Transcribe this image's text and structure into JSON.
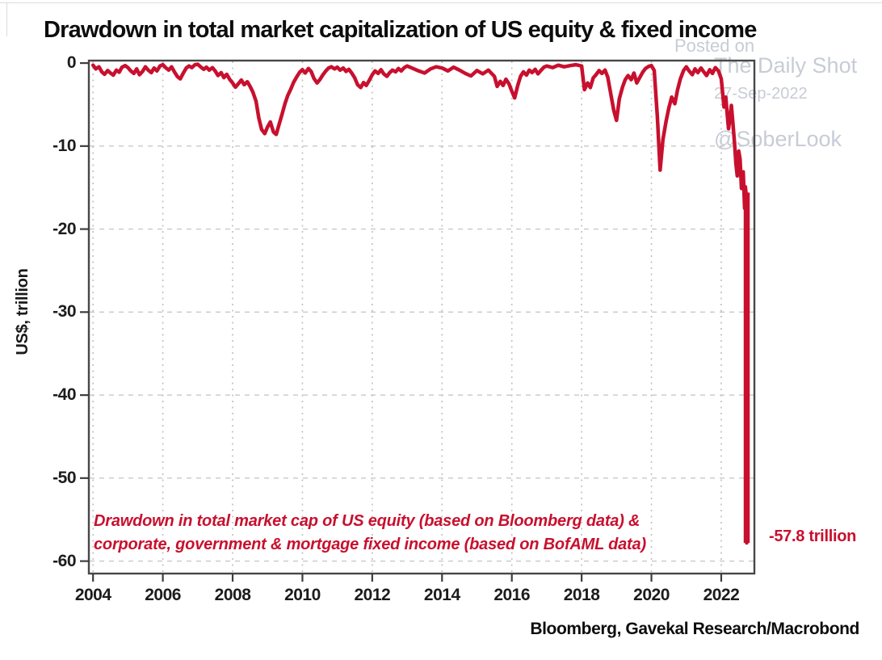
{
  "watermark": {
    "line1": "Posted on",
    "line2": "The Daily Shot",
    "line3": "27-Sep-2022",
    "handle": "@SoberLook"
  },
  "source_note": "Bloomberg, Gavekal Research/Macrobond",
  "chart_data": {
    "type": "line",
    "title": "Drawdown in total market capitalization of US equity & fixed income",
    "xlabel": "",
    "ylabel": "US$, trillion",
    "xlim": [
      2003.88,
      2022.95
    ],
    "ylim": [
      -61.5,
      0.3
    ],
    "x_ticks": [
      2004,
      2006,
      2008,
      2010,
      2012,
      2014,
      2016,
      2018,
      2020,
      2022
    ],
    "y_ticks": [
      0,
      -10,
      -20,
      -30,
      -40,
      -50,
      -60
    ],
    "grid": true,
    "legend": "none",
    "line_color": "#c8102e",
    "annotations": {
      "note_line1": "Drawdown in total market cap of US equity (based on Bloomberg data) &",
      "note_line2": "corporate, government & mortgage fixed income (based on BofAML data)",
      "last_value_label": "-57.8 trillion",
      "key_points": {
        "gfc_trough_2009": -8.6,
        "dip_2011": -2.95,
        "dip_2016": -4.2,
        "dip_dec_2018": -6.9,
        "covid_trough_2020": -12.9,
        "sep_2022_before_spike": -17.5,
        "final_value_sep_2022": -57.8
      }
    },
    "series": [
      {
        "name": "Drawdown in total market cap of US equity & fixed income (US$ trillion)",
        "points": [
          [
            2004.0,
            -0.25
          ],
          [
            2004.08,
            -0.7
          ],
          [
            2004.17,
            -0.45
          ],
          [
            2004.25,
            -1.05
          ],
          [
            2004.33,
            -1.35
          ],
          [
            2004.42,
            -0.9
          ],
          [
            2004.5,
            -1.2
          ],
          [
            2004.58,
            -1.45
          ],
          [
            2004.67,
            -0.85
          ],
          [
            2004.75,
            -1.1
          ],
          [
            2004.83,
            -0.5
          ],
          [
            2004.92,
            -0.3
          ],
          [
            2005.0,
            -0.55
          ],
          [
            2005.08,
            -0.95
          ],
          [
            2005.17,
            -1.25
          ],
          [
            2005.25,
            -0.7
          ],
          [
            2005.33,
            -1.4
          ],
          [
            2005.42,
            -1.0
          ],
          [
            2005.5,
            -0.45
          ],
          [
            2005.58,
            -0.85
          ],
          [
            2005.67,
            -1.15
          ],
          [
            2005.75,
            -0.6
          ],
          [
            2005.83,
            -0.95
          ],
          [
            2005.92,
            -0.35
          ],
          [
            2006.0,
            -0.2
          ],
          [
            2006.08,
            -0.55
          ],
          [
            2006.17,
            -0.85
          ],
          [
            2006.25,
            -0.45
          ],
          [
            2006.33,
            -1.05
          ],
          [
            2006.42,
            -1.65
          ],
          [
            2006.5,
            -1.9
          ],
          [
            2006.58,
            -1.25
          ],
          [
            2006.67,
            -0.6
          ],
          [
            2006.75,
            -0.35
          ],
          [
            2006.83,
            -0.55
          ],
          [
            2006.92,
            -0.2
          ],
          [
            2007.0,
            -0.15
          ],
          [
            2007.08,
            -0.45
          ],
          [
            2007.17,
            -0.75
          ],
          [
            2007.25,
            -0.5
          ],
          [
            2007.33,
            -0.85
          ],
          [
            2007.42,
            -0.55
          ],
          [
            2007.5,
            -0.95
          ],
          [
            2007.58,
            -1.5
          ],
          [
            2007.67,
            -1.15
          ],
          [
            2007.75,
            -1.75
          ],
          [
            2007.83,
            -1.35
          ],
          [
            2007.92,
            -2.0
          ],
          [
            2008.0,
            -2.4
          ],
          [
            2008.08,
            -2.9
          ],
          [
            2008.17,
            -2.45
          ],
          [
            2008.25,
            -2.05
          ],
          [
            2008.33,
            -2.6
          ],
          [
            2008.42,
            -2.25
          ],
          [
            2008.5,
            -2.8
          ],
          [
            2008.58,
            -3.5
          ],
          [
            2008.67,
            -4.6
          ],
          [
            2008.75,
            -6.6
          ],
          [
            2008.83,
            -8.0
          ],
          [
            2008.92,
            -8.5
          ],
          [
            2009.0,
            -7.7
          ],
          [
            2009.08,
            -7.1
          ],
          [
            2009.17,
            -8.3
          ],
          [
            2009.25,
            -8.6
          ],
          [
            2009.33,
            -7.4
          ],
          [
            2009.42,
            -6.1
          ],
          [
            2009.5,
            -4.9
          ],
          [
            2009.58,
            -3.9
          ],
          [
            2009.67,
            -3.1
          ],
          [
            2009.75,
            -2.3
          ],
          [
            2009.83,
            -1.7
          ],
          [
            2009.92,
            -1.1
          ],
          [
            2010.0,
            -0.8
          ],
          [
            2010.08,
            -1.2
          ],
          [
            2010.17,
            -0.65
          ],
          [
            2010.25,
            -1.0
          ],
          [
            2010.33,
            -1.85
          ],
          [
            2010.42,
            -2.4
          ],
          [
            2010.5,
            -2.0
          ],
          [
            2010.58,
            -1.45
          ],
          [
            2010.67,
            -0.95
          ],
          [
            2010.75,
            -0.6
          ],
          [
            2010.83,
            -0.45
          ],
          [
            2010.92,
            -0.7
          ],
          [
            2011.0,
            -0.5
          ],
          [
            2011.08,
            -0.85
          ],
          [
            2011.17,
            -0.6
          ],
          [
            2011.25,
            -1.0
          ],
          [
            2011.33,
            -0.75
          ],
          [
            2011.42,
            -1.25
          ],
          [
            2011.5,
            -1.8
          ],
          [
            2011.58,
            -2.6
          ],
          [
            2011.67,
            -2.95
          ],
          [
            2011.75,
            -2.35
          ],
          [
            2011.83,
            -2.7
          ],
          [
            2011.92,
            -2.05
          ],
          [
            2012.0,
            -1.4
          ],
          [
            2012.08,
            -0.95
          ],
          [
            2012.17,
            -1.25
          ],
          [
            2012.25,
            -0.8
          ],
          [
            2012.33,
            -1.3
          ],
          [
            2012.42,
            -1.6
          ],
          [
            2012.5,
            -1.15
          ],
          [
            2012.58,
            -0.85
          ],
          [
            2012.67,
            -1.05
          ],
          [
            2012.75,
            -0.65
          ],
          [
            2012.83,
            -0.95
          ],
          [
            2012.92,
            -0.55
          ],
          [
            2013.0,
            -0.35
          ],
          [
            2013.17,
            -0.65
          ],
          [
            2013.33,
            -0.95
          ],
          [
            2013.5,
            -1.2
          ],
          [
            2013.67,
            -0.7
          ],
          [
            2013.83,
            -0.45
          ],
          [
            2014.0,
            -0.6
          ],
          [
            2014.17,
            -0.95
          ],
          [
            2014.33,
            -0.5
          ],
          [
            2014.5,
            -0.85
          ],
          [
            2014.67,
            -1.25
          ],
          [
            2014.83,
            -1.55
          ],
          [
            2015.0,
            -0.9
          ],
          [
            2015.17,
            -1.3
          ],
          [
            2015.33,
            -0.85
          ],
          [
            2015.5,
            -1.6
          ],
          [
            2015.58,
            -2.8
          ],
          [
            2015.67,
            -2.2
          ],
          [
            2015.75,
            -2.7
          ],
          [
            2015.83,
            -1.95
          ],
          [
            2015.92,
            -2.5
          ],
          [
            2016.0,
            -3.4
          ],
          [
            2016.08,
            -4.2
          ],
          [
            2016.17,
            -2.7
          ],
          [
            2016.25,
            -1.6
          ],
          [
            2016.33,
            -1.05
          ],
          [
            2016.42,
            -1.45
          ],
          [
            2016.5,
            -0.85
          ],
          [
            2016.58,
            -1.15
          ],
          [
            2016.67,
            -0.75
          ],
          [
            2016.75,
            -1.3
          ],
          [
            2016.83,
            -0.9
          ],
          [
            2016.92,
            -0.5
          ],
          [
            2017.0,
            -0.35
          ],
          [
            2017.17,
            -0.55
          ],
          [
            2017.33,
            -0.25
          ],
          [
            2017.5,
            -0.45
          ],
          [
            2017.67,
            -0.3
          ],
          [
            2017.83,
            -0.2
          ],
          [
            2018.0,
            -0.35
          ],
          [
            2018.08,
            -3.2
          ],
          [
            2018.17,
            -2.4
          ],
          [
            2018.25,
            -2.95
          ],
          [
            2018.33,
            -1.8
          ],
          [
            2018.42,
            -1.35
          ],
          [
            2018.5,
            -0.9
          ],
          [
            2018.58,
            -1.25
          ],
          [
            2018.67,
            -0.85
          ],
          [
            2018.75,
            -1.7
          ],
          [
            2018.83,
            -3.6
          ],
          [
            2018.92,
            -5.7
          ],
          [
            2019.0,
            -6.9
          ],
          [
            2019.08,
            -4.3
          ],
          [
            2019.17,
            -2.9
          ],
          [
            2019.25,
            -2.0
          ],
          [
            2019.33,
            -1.5
          ],
          [
            2019.42,
            -2.0
          ],
          [
            2019.5,
            -1.2
          ],
          [
            2019.58,
            -2.4
          ],
          [
            2019.67,
            -1.7
          ],
          [
            2019.75,
            -1.1
          ],
          [
            2019.83,
            -0.65
          ],
          [
            2019.92,
            -0.4
          ],
          [
            2020.0,
            -0.3
          ],
          [
            2020.08,
            -0.9
          ],
          [
            2020.17,
            -6.5
          ],
          [
            2020.25,
            -12.9
          ],
          [
            2020.33,
            -9.2
          ],
          [
            2020.42,
            -7.0
          ],
          [
            2020.5,
            -5.4
          ],
          [
            2020.58,
            -4.1
          ],
          [
            2020.67,
            -4.9
          ],
          [
            2020.75,
            -3.2
          ],
          [
            2020.83,
            -1.9
          ],
          [
            2020.92,
            -0.9
          ],
          [
            2021.0,
            -0.45
          ],
          [
            2021.08,
            -0.95
          ],
          [
            2021.17,
            -1.4
          ],
          [
            2021.25,
            -0.7
          ],
          [
            2021.33,
            -1.15
          ],
          [
            2021.42,
            -0.6
          ],
          [
            2021.5,
            -1.05
          ],
          [
            2021.58,
            -1.5
          ],
          [
            2021.67,
            -0.8
          ],
          [
            2021.75,
            -1.25
          ],
          [
            2021.83,
            -0.55
          ],
          [
            2021.92,
            -0.95
          ],
          [
            2022.0,
            -1.9
          ],
          [
            2022.04,
            -3.6
          ],
          [
            2022.08,
            -5.3
          ],
          [
            2022.13,
            -4.1
          ],
          [
            2022.17,
            -6.1
          ],
          [
            2022.21,
            -7.9
          ],
          [
            2022.25,
            -6.6
          ],
          [
            2022.29,
            -5.1
          ],
          [
            2022.33,
            -7.0
          ],
          [
            2022.38,
            -9.6
          ],
          [
            2022.42,
            -12.1
          ],
          [
            2022.46,
            -13.6
          ],
          [
            2022.5,
            -10.6
          ],
          [
            2022.54,
            -11.6
          ],
          [
            2022.58,
            -15.1
          ],
          [
            2022.63,
            -13.1
          ],
          [
            2022.67,
            -17.5
          ],
          [
            2022.69,
            -14.9
          ],
          [
            2022.71,
            -15.6
          ],
          [
            2022.73,
            -57.8
          ]
        ]
      }
    ]
  }
}
